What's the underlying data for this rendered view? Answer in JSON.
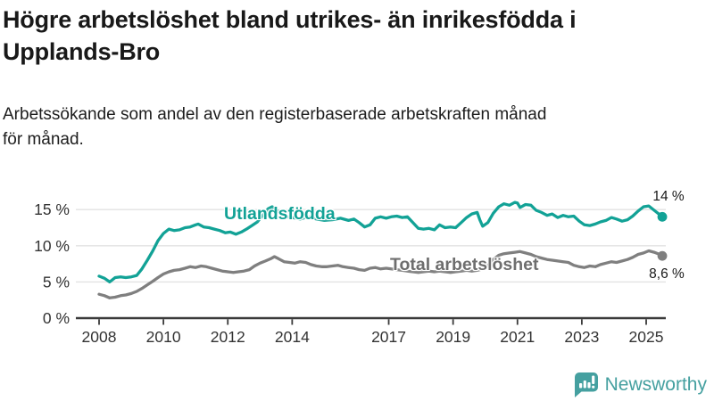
{
  "header": {
    "title_line1": "Högre arbetslöshet bland utrikes- än inrikesfödda i",
    "title_line2": "Upplands-Bro",
    "subtitle_line1": "Arbetssökande som andel av den registerbaserade arbetskraften månad",
    "subtitle_line2": "för månad."
  },
  "chart_data": {
    "type": "line",
    "title": "Högre arbetslöshet bland utrikes- än inrikesfödda i Upplands-Bro",
    "subtitle": "Arbetssökande som andel av den registerbaserade arbetskraften månad för månad.",
    "x_axis": {
      "ticks": [
        2008,
        2010,
        2012,
        2014,
        2017,
        2019,
        2021,
        2023,
        2025
      ],
      "range": [
        2008,
        2025.6
      ],
      "grid": false
    },
    "y_axis": {
      "ticks": [
        0,
        5,
        10,
        15
      ],
      "tick_labels": [
        "0 %",
        "5 %",
        "10 %",
        "15 %"
      ],
      "range": [
        0,
        18
      ],
      "grid": true
    },
    "legend_position": "inline-labels",
    "series": [
      {
        "name": "Utlandsfödda",
        "color": "#12a296",
        "label_color": "#12a296",
        "end_label": "14 %",
        "end_value": 14.0,
        "points": [
          [
            2008.0,
            5.8
          ],
          [
            2008.17,
            5.5
          ],
          [
            2008.33,
            5.0
          ],
          [
            2008.5,
            5.6
          ],
          [
            2008.67,
            5.7
          ],
          [
            2008.83,
            5.6
          ],
          [
            2009.0,
            5.7
          ],
          [
            2009.17,
            5.9
          ],
          [
            2009.33,
            6.8
          ],
          [
            2009.5,
            8.0
          ],
          [
            2009.67,
            9.3
          ],
          [
            2009.83,
            10.7
          ],
          [
            2010.0,
            11.7
          ],
          [
            2010.17,
            12.3
          ],
          [
            2010.33,
            12.1
          ],
          [
            2010.5,
            12.2
          ],
          [
            2010.67,
            12.5
          ],
          [
            2010.83,
            12.6
          ],
          [
            2011.0,
            12.9
          ],
          [
            2011.08,
            13.0
          ],
          [
            2011.25,
            12.6
          ],
          [
            2011.42,
            12.5
          ],
          [
            2011.58,
            12.3
          ],
          [
            2011.75,
            12.1
          ],
          [
            2011.92,
            11.8
          ],
          [
            2012.08,
            11.9
          ],
          [
            2012.25,
            11.6
          ],
          [
            2012.42,
            11.9
          ],
          [
            2012.58,
            12.3
          ],
          [
            2012.75,
            12.8
          ],
          [
            2012.92,
            13.3
          ],
          [
            2013.08,
            14.2
          ],
          [
            2013.25,
            15.1
          ],
          [
            2013.38,
            15.4
          ],
          [
            2013.5,
            15.0
          ],
          [
            2013.67,
            14.4
          ],
          [
            2013.83,
            14.0
          ],
          [
            2014.0,
            13.9
          ],
          [
            2014.25,
            13.7
          ],
          [
            2014.5,
            14.0
          ],
          [
            2014.75,
            13.7
          ],
          [
            2015.0,
            13.5
          ],
          [
            2015.25,
            13.6
          ],
          [
            2015.5,
            13.8
          ],
          [
            2015.75,
            13.5
          ],
          [
            2015.92,
            13.7
          ],
          [
            2016.08,
            13.2
          ],
          [
            2016.25,
            12.6
          ],
          [
            2016.42,
            12.9
          ],
          [
            2016.58,
            13.8
          ],
          [
            2016.75,
            14.0
          ],
          [
            2016.92,
            13.8
          ],
          [
            2017.08,
            14.0
          ],
          [
            2017.25,
            14.1
          ],
          [
            2017.42,
            13.9
          ],
          [
            2017.58,
            14.0
          ],
          [
            2017.75,
            13.2
          ],
          [
            2017.92,
            12.4
          ],
          [
            2018.08,
            12.3
          ],
          [
            2018.25,
            12.4
          ],
          [
            2018.42,
            12.2
          ],
          [
            2018.58,
            12.9
          ],
          [
            2018.75,
            12.5
          ],
          [
            2018.92,
            12.6
          ],
          [
            2019.08,
            12.5
          ],
          [
            2019.25,
            13.2
          ],
          [
            2019.42,
            13.9
          ],
          [
            2019.58,
            14.4
          ],
          [
            2019.75,
            14.6
          ],
          [
            2019.83,
            13.6
          ],
          [
            2019.92,
            12.7
          ],
          [
            2020.08,
            13.2
          ],
          [
            2020.25,
            14.5
          ],
          [
            2020.42,
            15.4
          ],
          [
            2020.58,
            15.8
          ],
          [
            2020.75,
            15.6
          ],
          [
            2020.92,
            16.0
          ],
          [
            2021.0,
            15.9
          ],
          [
            2021.08,
            15.3
          ],
          [
            2021.25,
            15.7
          ],
          [
            2021.42,
            15.6
          ],
          [
            2021.58,
            14.9
          ],
          [
            2021.75,
            14.6
          ],
          [
            2021.92,
            14.2
          ],
          [
            2022.08,
            14.4
          ],
          [
            2022.25,
            13.9
          ],
          [
            2022.42,
            14.2
          ],
          [
            2022.58,
            14.0
          ],
          [
            2022.75,
            14.1
          ],
          [
            2022.92,
            13.4
          ],
          [
            2023.08,
            12.9
          ],
          [
            2023.25,
            12.8
          ],
          [
            2023.42,
            13.0
          ],
          [
            2023.58,
            13.3
          ],
          [
            2023.75,
            13.5
          ],
          [
            2023.92,
            13.9
          ],
          [
            2024.08,
            13.7
          ],
          [
            2024.25,
            13.4
          ],
          [
            2024.42,
            13.6
          ],
          [
            2024.58,
            14.1
          ],
          [
            2024.75,
            14.8
          ],
          [
            2024.92,
            15.4
          ],
          [
            2025.08,
            15.5
          ],
          [
            2025.25,
            14.9
          ],
          [
            2025.42,
            14.3
          ],
          [
            2025.5,
            14.0
          ]
        ]
      },
      {
        "name": "Total arbetslöshet",
        "color": "#7f7f7f",
        "label_color": "#6e6e6e",
        "end_label": "8,6 %",
        "end_value": 8.6,
        "points": [
          [
            2008.0,
            3.3
          ],
          [
            2008.17,
            3.1
          ],
          [
            2008.33,
            2.8
          ],
          [
            2008.5,
            2.9
          ],
          [
            2008.67,
            3.1
          ],
          [
            2008.83,
            3.2
          ],
          [
            2009.0,
            3.4
          ],
          [
            2009.17,
            3.7
          ],
          [
            2009.33,
            4.1
          ],
          [
            2009.5,
            4.6
          ],
          [
            2009.67,
            5.1
          ],
          [
            2009.83,
            5.6
          ],
          [
            2010.0,
            6.1
          ],
          [
            2010.17,
            6.4
          ],
          [
            2010.33,
            6.6
          ],
          [
            2010.5,
            6.7
          ],
          [
            2010.67,
            6.9
          ],
          [
            2010.83,
            7.1
          ],
          [
            2011.0,
            7.0
          ],
          [
            2011.17,
            7.2
          ],
          [
            2011.33,
            7.1
          ],
          [
            2011.5,
            6.9
          ],
          [
            2011.67,
            6.7
          ],
          [
            2011.83,
            6.5
          ],
          [
            2012.0,
            6.4
          ],
          [
            2012.17,
            6.3
          ],
          [
            2012.33,
            6.4
          ],
          [
            2012.5,
            6.5
          ],
          [
            2012.67,
            6.7
          ],
          [
            2012.83,
            7.2
          ],
          [
            2013.0,
            7.6
          ],
          [
            2013.17,
            7.9
          ],
          [
            2013.33,
            8.2
          ],
          [
            2013.45,
            8.5
          ],
          [
            2013.58,
            8.2
          ],
          [
            2013.75,
            7.8
          ],
          [
            2013.92,
            7.7
          ],
          [
            2014.08,
            7.6
          ],
          [
            2014.25,
            7.8
          ],
          [
            2014.42,
            7.7
          ],
          [
            2014.58,
            7.4
          ],
          [
            2014.75,
            7.2
          ],
          [
            2014.92,
            7.1
          ],
          [
            2015.08,
            7.1
          ],
          [
            2015.25,
            7.2
          ],
          [
            2015.42,
            7.3
          ],
          [
            2015.58,
            7.1
          ],
          [
            2015.75,
            7.0
          ],
          [
            2015.92,
            6.9
          ],
          [
            2016.08,
            6.7
          ],
          [
            2016.25,
            6.6
          ],
          [
            2016.42,
            6.9
          ],
          [
            2016.58,
            7.0
          ],
          [
            2016.75,
            6.8
          ],
          [
            2016.92,
            6.9
          ],
          [
            2017.08,
            6.8
          ],
          [
            2017.25,
            6.7
          ],
          [
            2017.42,
            6.6
          ],
          [
            2017.58,
            6.5
          ],
          [
            2017.75,
            6.4
          ],
          [
            2017.92,
            6.3
          ],
          [
            2018.08,
            6.4
          ],
          [
            2018.25,
            6.5
          ],
          [
            2018.42,
            6.4
          ],
          [
            2018.58,
            6.5
          ],
          [
            2018.75,
            6.4
          ],
          [
            2018.92,
            6.3
          ],
          [
            2019.08,
            6.4
          ],
          [
            2019.25,
            6.5
          ],
          [
            2019.42,
            6.6
          ],
          [
            2019.58,
            6.5
          ],
          [
            2019.75,
            6.6
          ],
          [
            2019.92,
            6.8
          ],
          [
            2020.08,
            7.3
          ],
          [
            2020.25,
            8.1
          ],
          [
            2020.42,
            8.7
          ],
          [
            2020.58,
            8.9
          ],
          [
            2020.75,
            9.0
          ],
          [
            2020.92,
            9.1
          ],
          [
            2021.08,
            9.2
          ],
          [
            2021.25,
            9.0
          ],
          [
            2021.42,
            8.8
          ],
          [
            2021.58,
            8.5
          ],
          [
            2021.75,
            8.3
          ],
          [
            2021.92,
            8.1
          ],
          [
            2022.08,
            8.0
          ],
          [
            2022.25,
            7.9
          ],
          [
            2022.42,
            7.8
          ],
          [
            2022.58,
            7.7
          ],
          [
            2022.75,
            7.3
          ],
          [
            2022.92,
            7.1
          ],
          [
            2023.08,
            7.0
          ],
          [
            2023.25,
            7.2
          ],
          [
            2023.42,
            7.1
          ],
          [
            2023.58,
            7.4
          ],
          [
            2023.75,
            7.6
          ],
          [
            2023.92,
            7.8
          ],
          [
            2024.08,
            7.7
          ],
          [
            2024.25,
            7.9
          ],
          [
            2024.42,
            8.1
          ],
          [
            2024.58,
            8.4
          ],
          [
            2024.75,
            8.8
          ],
          [
            2024.92,
            9.0
          ],
          [
            2025.08,
            9.3
          ],
          [
            2025.25,
            9.1
          ],
          [
            2025.42,
            8.8
          ],
          [
            2025.5,
            8.6
          ]
        ]
      }
    ]
  },
  "branding": {
    "logo_text": "Newsworthy",
    "color": "#45a0a0"
  }
}
